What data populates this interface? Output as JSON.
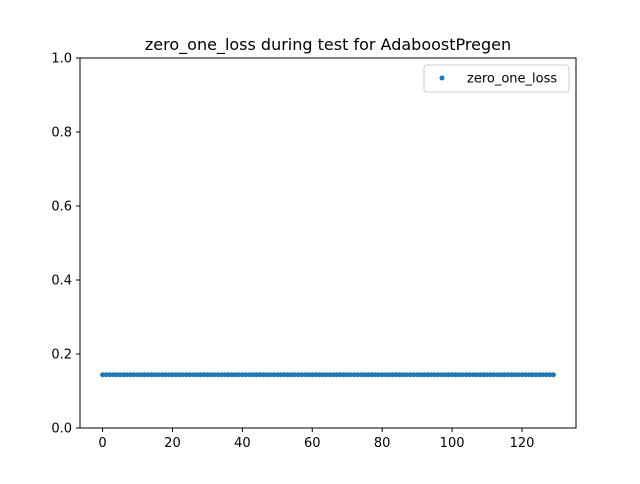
{
  "chart_data": {
    "type": "scatter",
    "title": "zero_one_loss during test for AdaboostPregen",
    "xlabel": "",
    "ylabel": "",
    "xlim": [
      -6.45,
      135.45
    ],
    "ylim": [
      0.0,
      1.0
    ],
    "xticks": [
      0,
      20,
      40,
      60,
      80,
      100,
      120
    ],
    "xtick_labels": [
      "0",
      "20",
      "40",
      "60",
      "80",
      "100",
      "120"
    ],
    "yticks": [
      0.0,
      0.2,
      0.4,
      0.6,
      0.8,
      1.0
    ],
    "ytick_labels": [
      "0.0",
      "0.2",
      "0.4",
      "0.6",
      "0.8",
      "1.0"
    ],
    "grid": false,
    "legend_position": "top-right",
    "series": [
      {
        "name": "zero_one_loss",
        "color": "#1f77b4",
        "x_start": 0,
        "x_end": 129,
        "x_step": 1,
        "constant_y": 0.144
      }
    ]
  }
}
